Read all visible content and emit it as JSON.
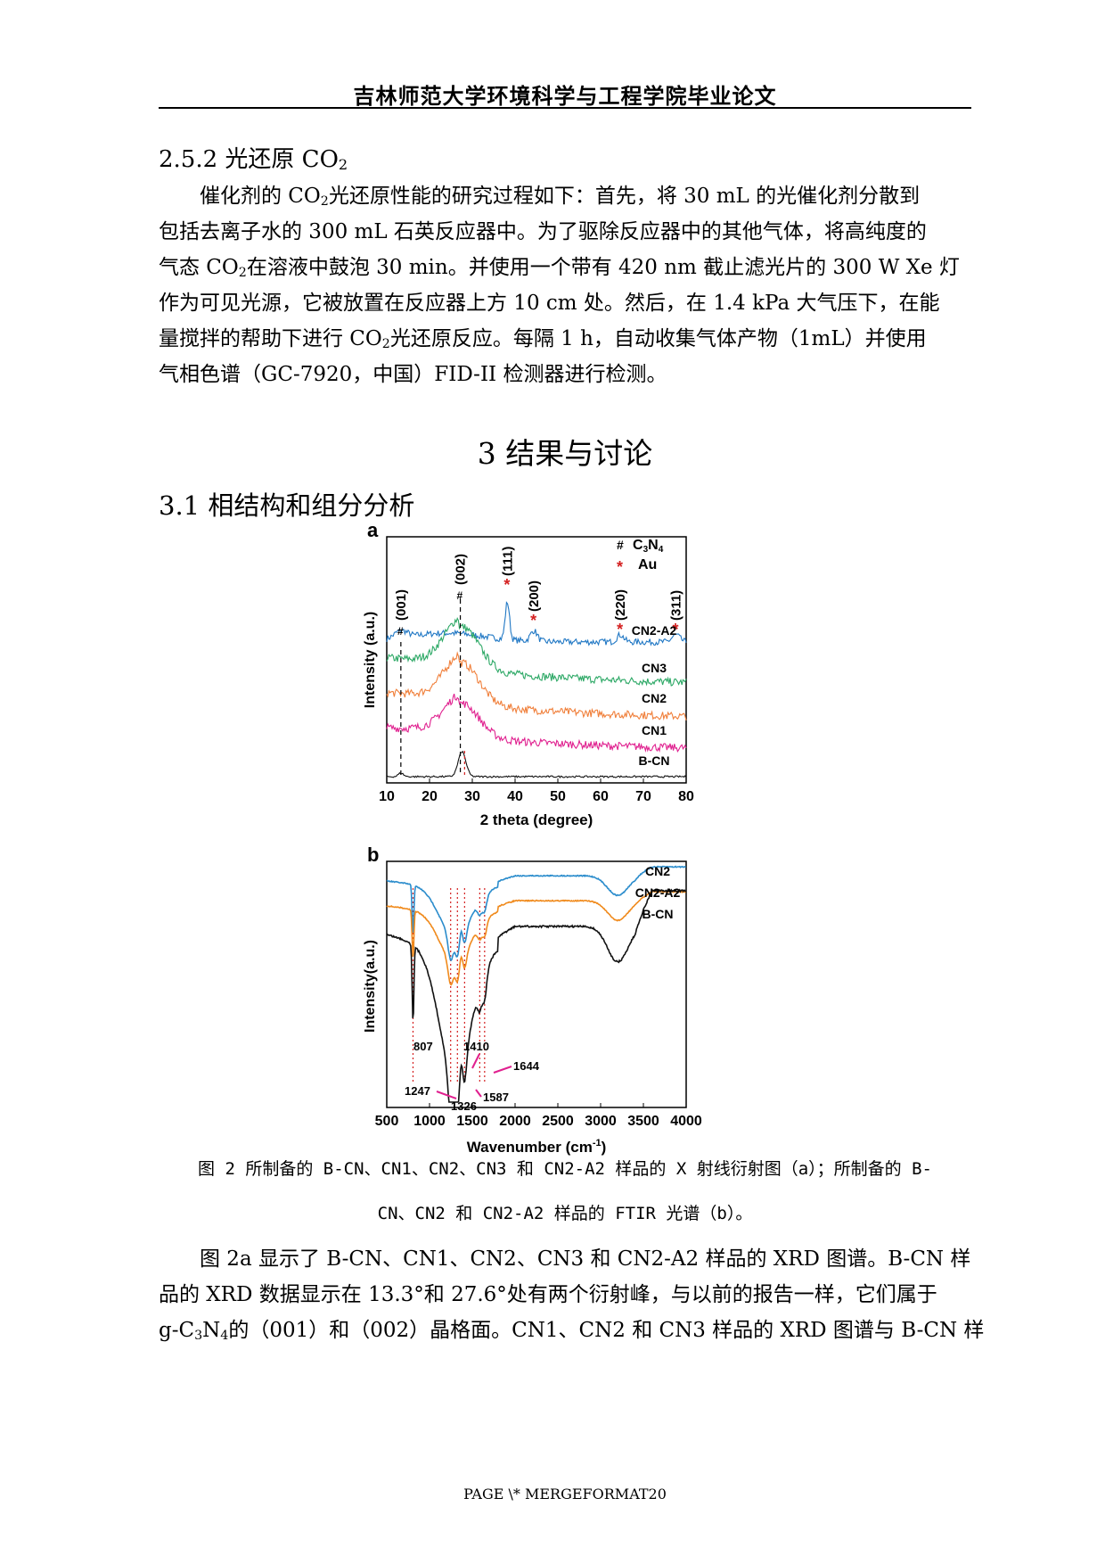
{
  "header": {
    "title": "吉林师范大学环境科学与工程学院毕业论文"
  },
  "section_252": {
    "heading_pre": "2.5.2 光还原 CO",
    "heading_sub": "2",
    "lines": [
      [
        "　　催化剂的 CO",
        "2",
        "光还原性能的研究过程如下：首先，将 30 mL 的光催化剂分散到"
      ],
      [
        "包括去离子水的 300 mL 石英反应器中。为了驱除反应器中的其他气体，将高纯度的"
      ],
      [
        "气态 CO",
        "2",
        "在溶液中鼓泡 30 min。并使用一个带有 420 nm 截止滤光片的 300 W Xe 灯"
      ],
      [
        "作为可见光源，它被放置在反应器上方 10 cm 处。然后，在 1.4 kPa 大气压下，在能"
      ],
      [
        "量搅拌的帮助下进行 CO",
        "2",
        "光还原反应。每隔 1 h，自动收集气体产物（1mL）并使用"
      ],
      [
        "气相色谱（GC-7920，中国）FID-II 检测器进行检测。"
      ]
    ]
  },
  "chapter3": {
    "heading": "3 结果与讨论"
  },
  "section_31": {
    "heading": "3.1 相结构和组分分析"
  },
  "figure": {
    "panel_a": {
      "label": "a",
      "legend": [
        {
          "symbol": "#",
          "text_pre": "C",
          "sub1": "3",
          "mid": "N",
          "sub2": "4"
        },
        {
          "symbol": "*",
          "text_pre": "Au"
        }
      ],
      "peak_labels": [
        "(001)",
        "(002)",
        "(111)",
        "(200)",
        "(220)",
        "(311)"
      ],
      "series": [
        "CN2-A2",
        "CN3",
        "CN2",
        "CN1",
        "B-CN"
      ],
      "y_axis_label": "Intensity (a.u.)",
      "x_axis_label": "2 theta (degree)",
      "x_ticks": [
        "10",
        "20",
        "30",
        "40",
        "50",
        "60",
        "70",
        "80"
      ]
    },
    "panel_b": {
      "label": "b",
      "series": [
        "CN2",
        "CN2-A2",
        "B-CN"
      ],
      "y_axis_label": "Intensity(a.u.)",
      "x_axis_label_pre": "Wavenumber (cm",
      "x_axis_label_sup": "-1",
      "x_axis_label_post": ")",
      "x_ticks": [
        "500",
        "1000",
        "1500",
        "2000",
        "2500",
        "3000",
        "3500",
        "4000"
      ],
      "peak_labels": [
        "807",
        "1410",
        "1644",
        "1247",
        "1326",
        "1587"
      ]
    }
  },
  "chart_data": [
    {
      "type": "line",
      "xlabel": "2 theta (degree)",
      "ylabel": "Intensity (a.u.)",
      "xlim": [
        10,
        80
      ],
      "series": [
        {
          "name": "CN2-A2",
          "color": "#1f77c4",
          "peaks": [
            13.3,
            27.6,
            38.2,
            44.4,
            64.6,
            77.6
          ]
        },
        {
          "name": "CN3",
          "color": "#2ca865",
          "peaks": [
            27.6
          ]
        },
        {
          "name": "CN2",
          "color": "#f07f3a",
          "peaks": [
            27.6
          ]
        },
        {
          "name": "CN1",
          "color": "#e0208f",
          "peaks": [
            27.6
          ]
        },
        {
          "name": "B-CN",
          "color": "#111111",
          "peaks": [
            13.3,
            27.6
          ]
        }
      ],
      "legend": [
        "C3N4 (#)",
        "Au (*)"
      ]
    },
    {
      "type": "line",
      "xlabel": "Wavenumber (cm-1)",
      "ylabel": "Intensity(a.u.)",
      "xlim": [
        500,
        4000
      ],
      "series": [
        {
          "name": "CN2",
          "color": "#2a8ccc"
        },
        {
          "name": "CN2-A2",
          "color": "#f08a1c"
        },
        {
          "name": "B-CN",
          "color": "#111111"
        }
      ],
      "marked_peaks": [
        807,
        1247,
        1326,
        1410,
        1587,
        1644
      ]
    }
  ],
  "caption": {
    "line1": "图 2 所制备的 B-CN、CN1、CN2、CN3 和 CN2-A2 样品的 X 射线衍射图（a）；所制备的 B-",
    "line2": "CN、CN2 和 CN2-A2 样品的 FTIR 光谱（b）。"
  },
  "discussion": {
    "lines": [
      [
        "　　图 2a 显示了 B-CN、CN1、CN2、CN3 和 CN2-A2 样品的 XRD 图谱。B-CN 样"
      ],
      [
        "品的 XRD 数据显示在 13.3°和 27.6°处有两个衍射峰，与以前的报告一样，它们属于"
      ],
      [
        "g-C",
        "3",
        "N",
        "4",
        "的（001）和（002）晶格面。CN1、CN2 和 CN3 样品的 XRD 图谱与 B-CN 样"
      ]
    ]
  },
  "footer": {
    "text": "PAGE   \\* MERGEFORMAT20"
  }
}
